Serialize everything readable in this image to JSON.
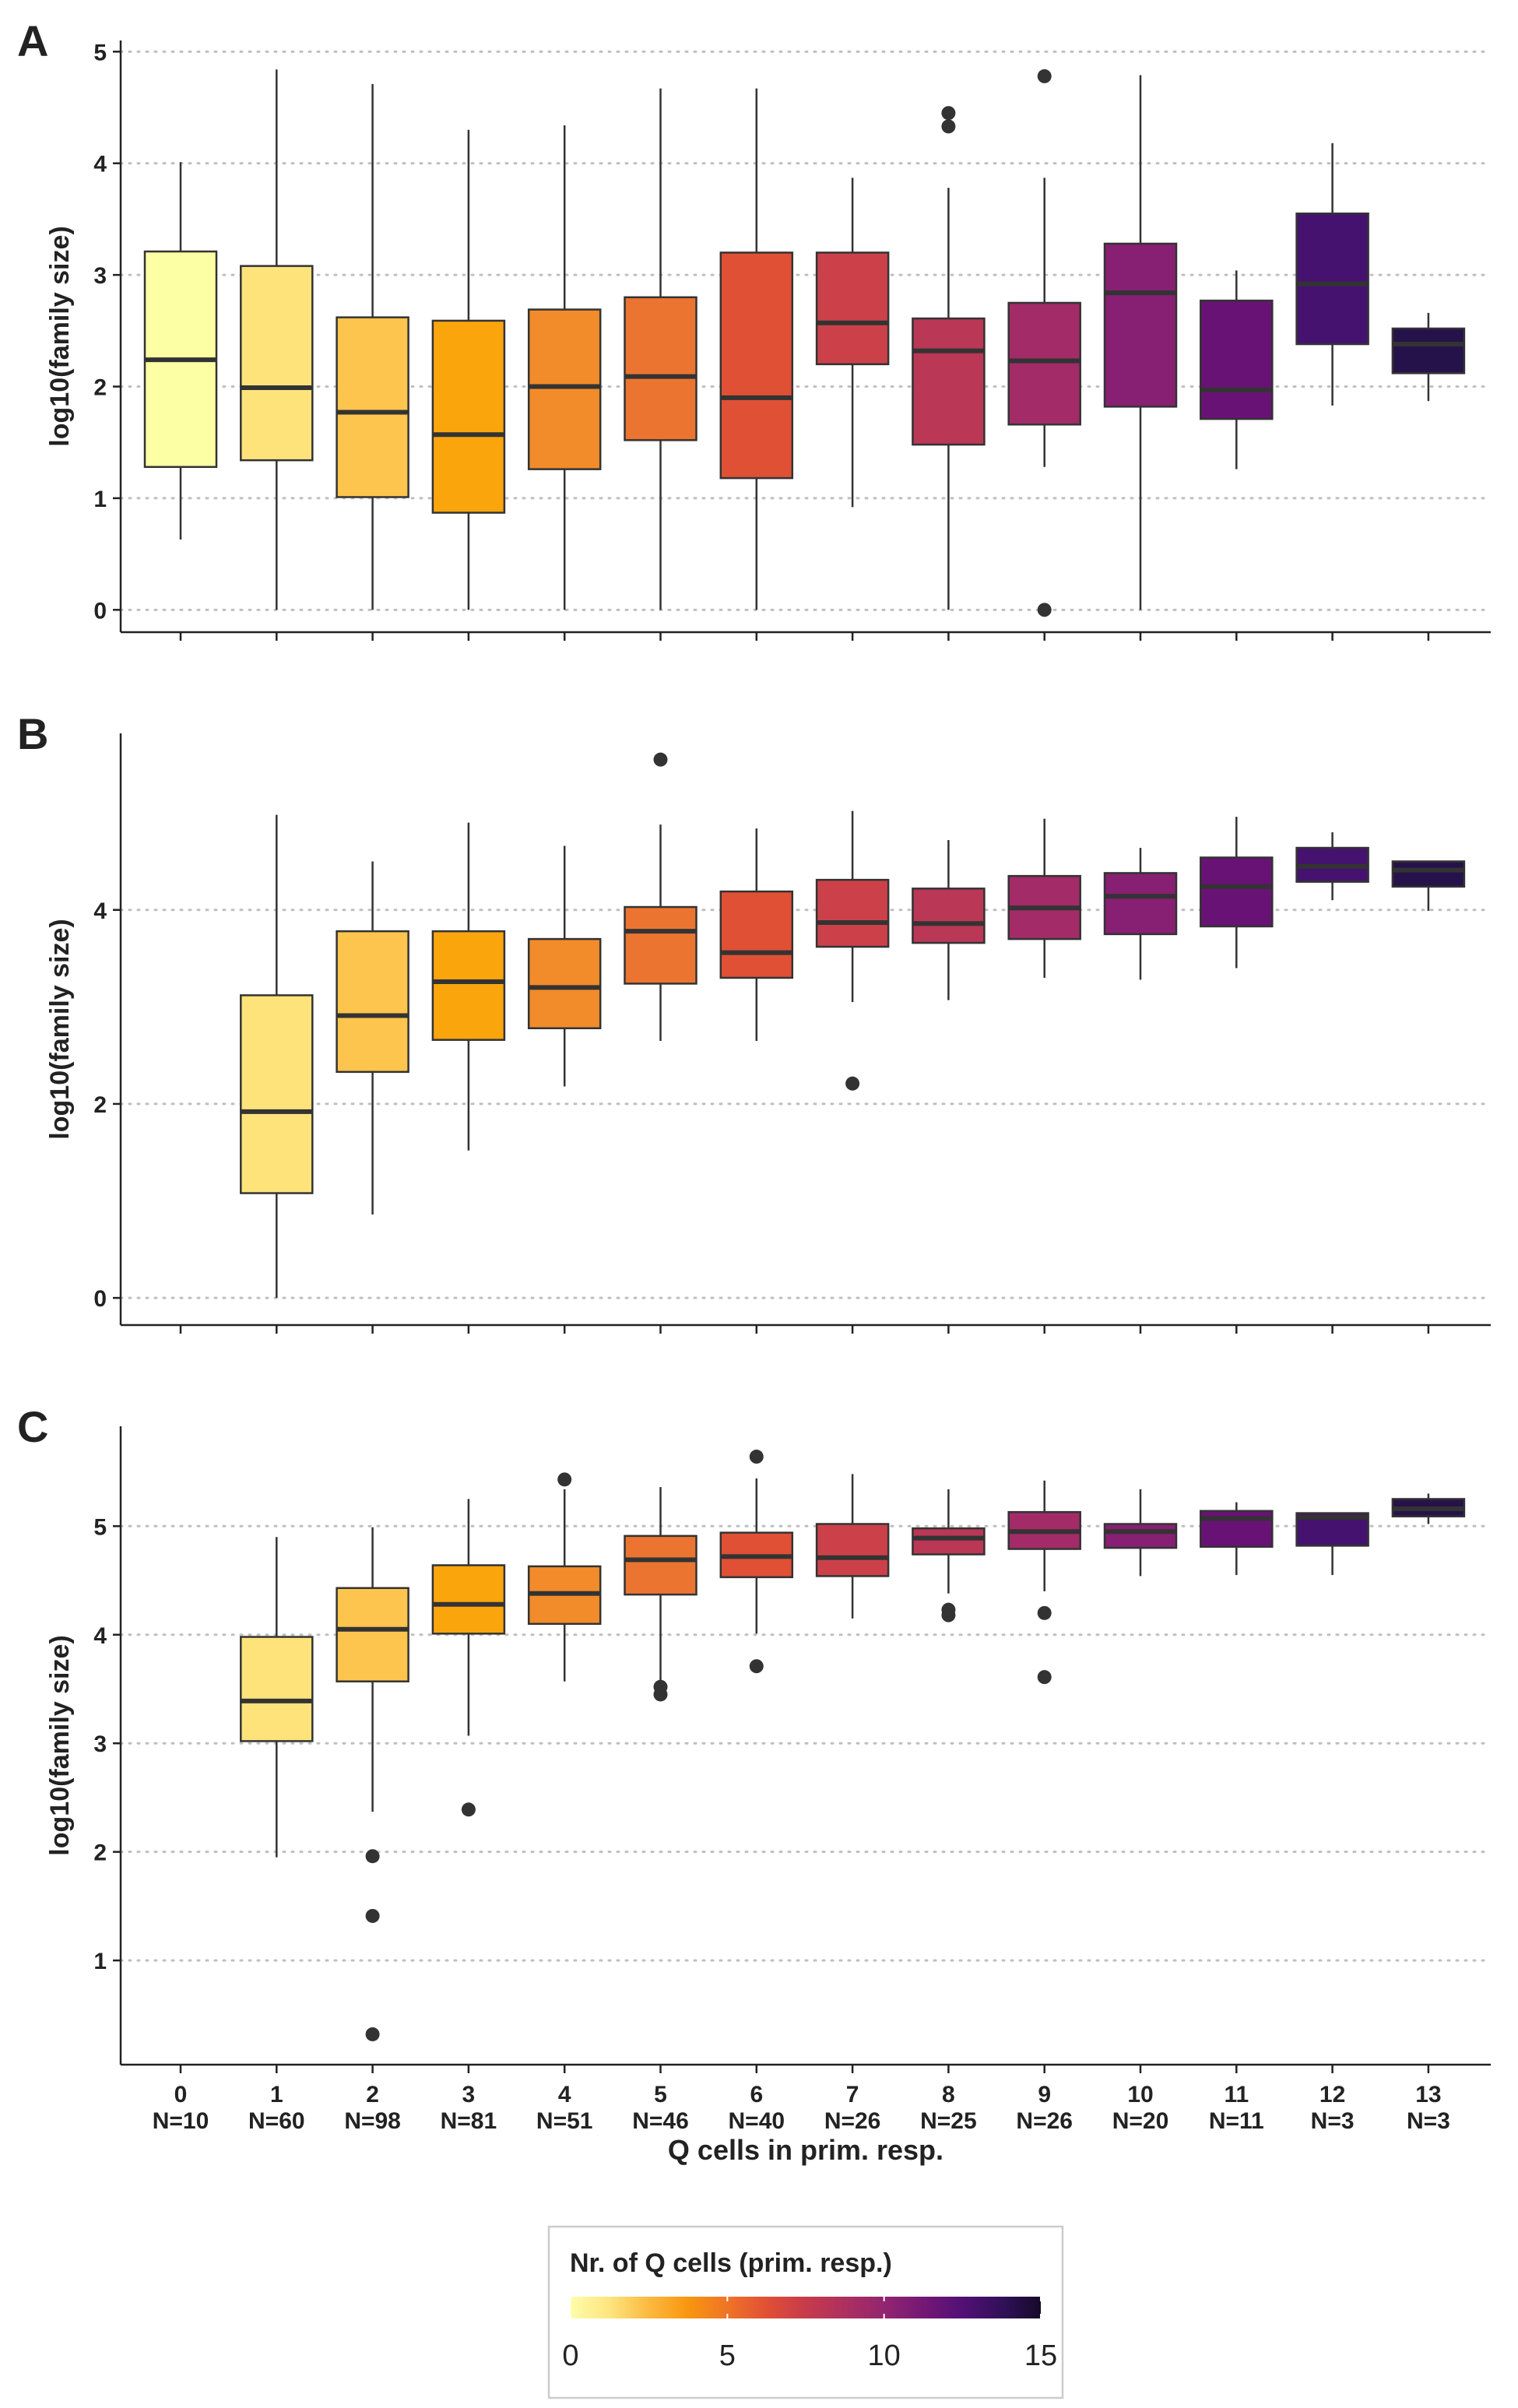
{
  "chart_data": [
    {
      "panel": "A",
      "type": "box",
      "ylabel": "log10(family size)",
      "ylim": [
        -0.2,
        5.1
      ],
      "yticks": [
        0,
        1,
        2,
        3,
        4,
        5
      ],
      "grid": "horizontal-dotted",
      "categories": [
        "0",
        "1",
        "2",
        "3",
        "4",
        "5",
        "6",
        "7",
        "8",
        "9",
        "10",
        "11",
        "12",
        "13"
      ],
      "boxes": [
        {
          "x": 0,
          "whisker_low": 0.63,
          "q1": 1.28,
          "median": 2.24,
          "q3": 3.21,
          "whisker_high": 4.01,
          "outliers": []
        },
        {
          "x": 1,
          "whisker_low": 0.0,
          "q1": 1.34,
          "median": 1.99,
          "q3": 3.08,
          "whisker_high": 4.84,
          "outliers": []
        },
        {
          "x": 2,
          "whisker_low": 0.0,
          "q1": 1.01,
          "median": 1.77,
          "q3": 2.62,
          "whisker_high": 4.71,
          "outliers": []
        },
        {
          "x": 3,
          "whisker_low": 0.0,
          "q1": 0.87,
          "median": 1.57,
          "q3": 2.59,
          "whisker_high": 4.3,
          "outliers": []
        },
        {
          "x": 4,
          "whisker_low": 0.0,
          "q1": 1.26,
          "median": 2.0,
          "q3": 2.69,
          "whisker_high": 4.34,
          "outliers": []
        },
        {
          "x": 5,
          "whisker_low": 0.0,
          "q1": 1.52,
          "median": 2.09,
          "q3": 2.8,
          "whisker_high": 4.67,
          "outliers": []
        },
        {
          "x": 6,
          "whisker_low": 0.0,
          "q1": 1.18,
          "median": 1.9,
          "q3": 3.2,
          "whisker_high": 4.67,
          "outliers": []
        },
        {
          "x": 7,
          "whisker_low": 0.92,
          "q1": 2.2,
          "median": 2.57,
          "q3": 3.2,
          "whisker_high": 3.87,
          "outliers": []
        },
        {
          "x": 8,
          "whisker_low": 0.0,
          "q1": 1.48,
          "median": 2.32,
          "q3": 2.61,
          "whisker_high": 3.78,
          "outliers": [
            4.33,
            4.45
          ]
        },
        {
          "x": 9,
          "whisker_low": 1.28,
          "q1": 1.66,
          "median": 2.23,
          "q3": 2.75,
          "whisker_high": 3.87,
          "outliers": [
            0.0,
            4.78
          ]
        },
        {
          "x": 10,
          "whisker_low": 0.0,
          "q1": 1.82,
          "median": 2.84,
          "q3": 3.28,
          "whisker_high": 4.79,
          "outliers": []
        },
        {
          "x": 11,
          "whisker_low": 1.26,
          "q1": 1.71,
          "median": 1.97,
          "q3": 2.77,
          "whisker_high": 3.04,
          "outliers": []
        },
        {
          "x": 12,
          "whisker_low": 1.83,
          "q1": 2.38,
          "median": 2.92,
          "q3": 3.55,
          "whisker_high": 4.18,
          "outliers": []
        },
        {
          "x": 13,
          "whisker_low": 1.87,
          "q1": 2.12,
          "median": 2.38,
          "q3": 2.52,
          "whisker_high": 2.66,
          "outliers": []
        }
      ]
    },
    {
      "panel": "B",
      "type": "box",
      "ylabel": "log10(family size)",
      "ylim": [
        -0.28,
        5.82
      ],
      "yticks": [
        0,
        2,
        4
      ],
      "grid": "horizontal-dotted",
      "categories": [
        "0",
        "1",
        "2",
        "3",
        "4",
        "5",
        "6",
        "7",
        "8",
        "9",
        "10",
        "11",
        "12",
        "13"
      ],
      "boxes": [
        {
          "x": 1,
          "whisker_low": 0.0,
          "q1": 1.08,
          "median": 1.92,
          "q3": 3.12,
          "whisker_high": 4.98,
          "outliers": []
        },
        {
          "x": 2,
          "whisker_low": 0.86,
          "q1": 2.33,
          "median": 2.91,
          "q3": 3.78,
          "whisker_high": 4.5,
          "outliers": []
        },
        {
          "x": 3,
          "whisker_low": 1.52,
          "q1": 2.66,
          "median": 3.26,
          "q3": 3.78,
          "whisker_high": 4.9,
          "outliers": []
        },
        {
          "x": 4,
          "whisker_low": 2.18,
          "q1": 2.78,
          "median": 3.2,
          "q3": 3.7,
          "whisker_high": 4.66,
          "outliers": []
        },
        {
          "x": 5,
          "whisker_low": 2.65,
          "q1": 3.24,
          "median": 3.78,
          "q3": 4.03,
          "whisker_high": 4.88,
          "outliers": [
            5.55
          ]
        },
        {
          "x": 6,
          "whisker_low": 2.65,
          "q1": 3.3,
          "median": 3.56,
          "q3": 4.19,
          "whisker_high": 4.84,
          "outliers": []
        },
        {
          "x": 7,
          "whisker_low": 3.05,
          "q1": 3.62,
          "median": 3.87,
          "q3": 4.31,
          "whisker_high": 5.02,
          "outliers": [
            2.21
          ]
        },
        {
          "x": 8,
          "whisker_low": 3.07,
          "q1": 3.66,
          "median": 3.86,
          "q3": 4.22,
          "whisker_high": 4.72,
          "outliers": []
        },
        {
          "x": 9,
          "whisker_low": 3.3,
          "q1": 3.7,
          "median": 4.02,
          "q3": 4.35,
          "whisker_high": 4.94,
          "outliers": []
        },
        {
          "x": 10,
          "whisker_low": 3.28,
          "q1": 3.75,
          "median": 4.14,
          "q3": 4.38,
          "whisker_high": 4.64,
          "outliers": []
        },
        {
          "x": 11,
          "whisker_low": 3.4,
          "q1": 3.83,
          "median": 4.24,
          "q3": 4.54,
          "whisker_high": 4.96,
          "outliers": []
        },
        {
          "x": 12,
          "whisker_low": 4.1,
          "q1": 4.29,
          "median": 4.45,
          "q3": 4.64,
          "whisker_high": 4.8,
          "outliers": []
        },
        {
          "x": 13,
          "whisker_low": 3.99,
          "q1": 4.24,
          "median": 4.41,
          "q3": 4.5,
          "whisker_high": 4.5,
          "outliers": []
        }
      ]
    },
    {
      "panel": "C",
      "type": "box",
      "xlabel": "Q cells in prim. resp.",
      "ylabel": "log10(family size)",
      "ylim": [
        0.04,
        5.92
      ],
      "yticks": [
        1,
        2,
        3,
        4,
        5
      ],
      "grid": "horizontal-dotted",
      "categories": [
        "0",
        "1",
        "2",
        "3",
        "4",
        "5",
        "6",
        "7",
        "8",
        "9",
        "10",
        "11",
        "12",
        "13"
      ],
      "sublabels": [
        "N=10",
        "N=60",
        "N=98",
        "N=81",
        "N=51",
        "N=46",
        "N=40",
        "N=26",
        "N=25",
        "N=26",
        "N=20",
        "N=11",
        "N=3",
        "N=3"
      ],
      "boxes": [
        {
          "x": 1,
          "whisker_low": 1.95,
          "q1": 3.02,
          "median": 3.39,
          "q3": 3.98,
          "whisker_high": 4.9,
          "outliers": []
        },
        {
          "x": 2,
          "whisker_low": 2.37,
          "q1": 3.57,
          "median": 4.05,
          "q3": 4.43,
          "whisker_high": 4.99,
          "outliers": [
            1.96,
            1.41,
            0.32
          ]
        },
        {
          "x": 3,
          "whisker_low": 3.07,
          "q1": 4.01,
          "median": 4.28,
          "q3": 4.64,
          "whisker_high": 5.25,
          "outliers": [
            2.39
          ]
        },
        {
          "x": 4,
          "whisker_low": 3.57,
          "q1": 4.1,
          "median": 4.38,
          "q3": 4.63,
          "whisker_high": 5.34,
          "outliers": [
            5.43
          ]
        },
        {
          "x": 5,
          "whisker_low": 3.55,
          "q1": 4.37,
          "median": 4.69,
          "q3": 4.91,
          "whisker_high": 5.36,
          "outliers": [
            3.52,
            3.45
          ]
        },
        {
          "x": 6,
          "whisker_low": 4.01,
          "q1": 4.53,
          "median": 4.72,
          "q3": 4.94,
          "whisker_high": 5.44,
          "outliers": [
            5.64,
            3.71
          ]
        },
        {
          "x": 7,
          "whisker_low": 4.15,
          "q1": 4.54,
          "median": 4.71,
          "q3": 5.02,
          "whisker_high": 5.48,
          "outliers": []
        },
        {
          "x": 8,
          "whisker_low": 4.38,
          "q1": 4.74,
          "median": 4.89,
          "q3": 4.98,
          "whisker_high": 5.34,
          "outliers": [
            4.23,
            4.18
          ]
        },
        {
          "x": 9,
          "whisker_low": 4.4,
          "q1": 4.79,
          "median": 4.95,
          "q3": 5.13,
          "whisker_high": 5.42,
          "outliers": [
            4.2,
            3.61
          ]
        },
        {
          "x": 10,
          "whisker_low": 4.54,
          "q1": 4.8,
          "median": 4.95,
          "q3": 5.02,
          "whisker_high": 5.34,
          "outliers": []
        },
        {
          "x": 11,
          "whisker_low": 4.55,
          "q1": 4.81,
          "median": 5.07,
          "q3": 5.14,
          "whisker_high": 5.22,
          "outliers": []
        },
        {
          "x": 12,
          "whisker_low": 4.55,
          "q1": 4.82,
          "median": 5.08,
          "q3": 5.12,
          "whisker_high": 5.12,
          "outliers": []
        },
        {
          "x": 13,
          "whisker_low": 5.02,
          "q1": 5.09,
          "median": 5.16,
          "q3": 5.25,
          "whisker_high": 5.3,
          "outliers": []
        }
      ]
    }
  ],
  "box_colors": [
    "#fdffa5",
    "#fde37a",
    "#fdc54e",
    "#fba50d",
    "#f28b2a",
    "#ec7431",
    "#e05035",
    "#cc4149",
    "#ba3755",
    "#a22b68",
    "#871f73",
    "#691276",
    "#46126f",
    "#26124a"
  ],
  "legend": {
    "title": "Nr. of Q cells (prim. resp.)",
    "ticks": [
      "0",
      "5",
      "10",
      "15"
    ],
    "range": [
      0,
      15
    ],
    "colors": [
      "#fffcab",
      "#fde57e",
      "#fcb940",
      "#f8960f",
      "#ef7427",
      "#e05035",
      "#c73b4b",
      "#ad3060",
      "#932570",
      "#741876",
      "#521075",
      "#32105a",
      "#160a2a"
    ]
  }
}
